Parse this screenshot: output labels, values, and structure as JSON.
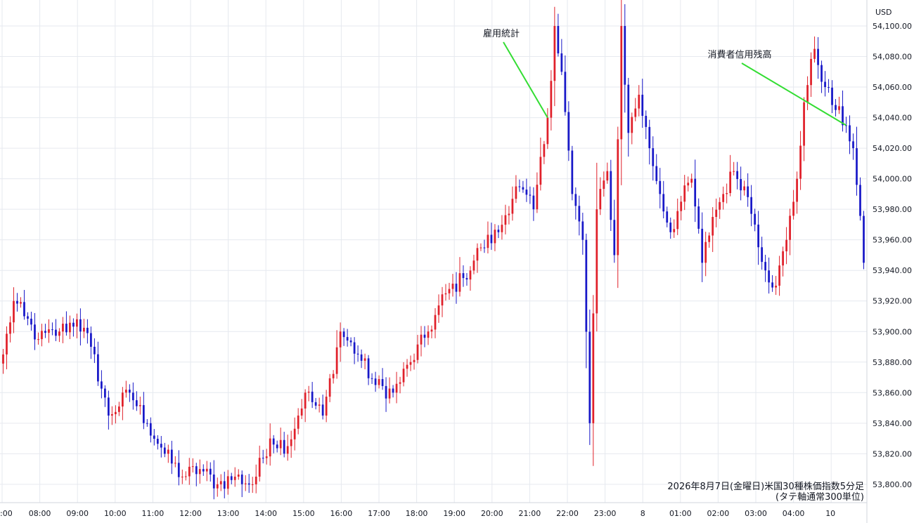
{
  "chart_data": {
    "type": "candlestick",
    "currency": "USD",
    "caption": [
      "2026年8月7日(金曜日)米国30種株価指数5分足",
      "(タテ軸通常300単位)"
    ],
    "x_ticks": [
      ":00",
      "08:00",
      "09:00",
      "10:00",
      "11:00",
      "12:00",
      "13:00",
      "14:00",
      "15:00",
      "16:00",
      "17:00",
      "18:00",
      "19:00",
      "20:00",
      "21:00",
      "22:00",
      "23:00",
      "8",
      "01:00",
      "02:00",
      "03:00",
      "04:00",
      "10"
    ],
    "y_ticks": [
      "53,800.00",
      "53,820.00",
      "53,840.00",
      "53,860.00",
      "53,880.00",
      "53,900.00",
      "53,920.00",
      "53,940.00",
      "53,960.00",
      "53,980.00",
      "54,000.00",
      "54,020.00",
      "54,040.00",
      "54,060.00",
      "54,080.00",
      "54,100.00"
    ],
    "ylim": [
      53788,
      54117
    ],
    "colors": {
      "up": "#e0202a",
      "down": "#1818c8",
      "annotation_line": "#33dd33",
      "grid": "#e6e9ef"
    },
    "annotations": [
      {
        "label": "雇用統計",
        "candle_index": 155
      },
      {
        "label": "消費者信用残高",
        "candle_index": 240
      }
    ],
    "anchors": [
      [
        0,
        53885
      ],
      [
        3,
        53920
      ],
      [
        6,
        53910
      ],
      [
        10,
        53895
      ],
      [
        16,
        53900
      ],
      [
        21,
        53908
      ],
      [
        25,
        53890
      ],
      [
        30,
        53845
      ],
      [
        36,
        53860
      ],
      [
        41,
        53840
      ],
      [
        46,
        53820
      ],
      [
        51,
        53805
      ],
      [
        56,
        53810
      ],
      [
        61,
        53800
      ],
      [
        66,
        53805
      ],
      [
        71,
        53800
      ],
      [
        76,
        53830
      ],
      [
        81,
        53825
      ],
      [
        86,
        53860
      ],
      [
        91,
        53845
      ],
      [
        96,
        53900
      ],
      [
        101,
        53885
      ],
      [
        106,
        53865
      ],
      [
        111,
        53860
      ],
      [
        116,
        53880
      ],
      [
        121,
        53900
      ],
      [
        126,
        53925
      ],
      [
        131,
        53935
      ],
      [
        136,
        53955
      ],
      [
        141,
        53965
      ],
      [
        146,
        53995
      ],
      [
        151,
        53980
      ],
      [
        155,
        54040
      ],
      [
        157,
        54100
      ],
      [
        159,
        54070
      ],
      [
        162,
        53990
      ],
      [
        165,
        53960
      ],
      [
        167,
        53840
      ],
      [
        169,
        53980
      ],
      [
        172,
        54005
      ],
      [
        174,
        53950
      ],
      [
        176,
        54100
      ],
      [
        178,
        54030
      ],
      [
        181,
        54055
      ],
      [
        184,
        54020
      ],
      [
        187,
        53990
      ],
      [
        190,
        53965
      ],
      [
        193,
        53985
      ],
      [
        196,
        54000
      ],
      [
        199,
        53945
      ],
      [
        202,
        53975
      ],
      [
        205,
        53990
      ],
      [
        208,
        54005
      ],
      [
        211,
        53995
      ],
      [
        214,
        53970
      ],
      [
        217,
        53940
      ],
      [
        220,
        53930
      ],
      [
        223,
        53960
      ],
      [
        226,
        54000
      ],
      [
        228,
        54050
      ],
      [
        231,
        54085
      ],
      [
        234,
        54060
      ],
      [
        237,
        54045
      ],
      [
        240,
        54035
      ],
      [
        242,
        54020
      ],
      [
        245,
        53945
      ]
    ]
  }
}
